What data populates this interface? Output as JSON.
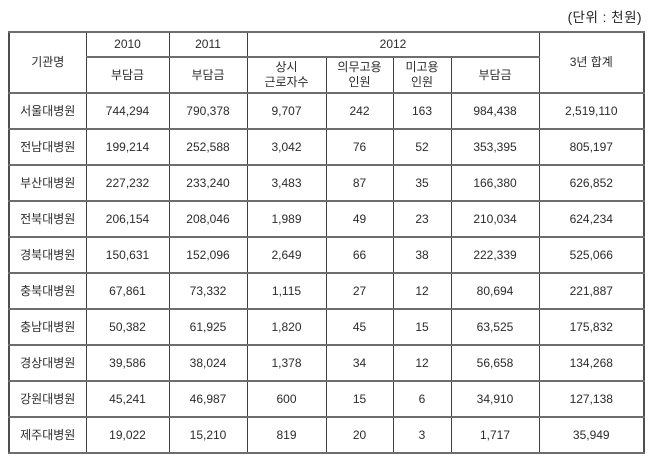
{
  "unit_label": "(단위 : 천원)",
  "table": {
    "header": {
      "org": "기관명",
      "year_2010": "2010",
      "year_2011": "2011",
      "year_2012": "2012",
      "total": "3년 합계",
      "levy_2010": "부담금",
      "levy_2011": "부담금",
      "workers_line1": "상시",
      "workers_line2": "근로자수",
      "mandatory_line1": "의무고용",
      "mandatory_line2": "인원",
      "unemployed_line1": "미고용",
      "unemployed_line2": "인원",
      "levy_2012": "부담금"
    },
    "rows": [
      [
        "서울대병원",
        "744,294",
        "790,378",
        "9,707",
        "242",
        "163",
        "984,438",
        "2,519,110"
      ],
      [
        "전남대병원",
        "199,214",
        "252,588",
        "3,042",
        "76",
        "52",
        "353,395",
        "805,197"
      ],
      [
        "부산대병원",
        "227,232",
        "233,240",
        "3,483",
        "87",
        "35",
        "166,380",
        "626,852"
      ],
      [
        "전북대병원",
        "206,154",
        "208,046",
        "1,989",
        "49",
        "23",
        "210,034",
        "624,234"
      ],
      [
        "경북대병원",
        "150,631",
        "152,096",
        "2,649",
        "66",
        "38",
        "222,339",
        "525,066"
      ],
      [
        "충북대병원",
        "67,861",
        "73,332",
        "1,115",
        "27",
        "12",
        "80,694",
        "221,887"
      ],
      [
        "충남대병원",
        "50,382",
        "61,925",
        "1,820",
        "45",
        "15",
        "63,525",
        "175,832"
      ],
      [
        "경상대병원",
        "39,586",
        "38,024",
        "1,378",
        "34",
        "12",
        "56,658",
        "134,268"
      ],
      [
        "강원대병원",
        "45,241",
        "46,987",
        "600",
        "15",
        "6",
        "34,910",
        "127,138"
      ],
      [
        "제주대병원",
        "19,022",
        "15,210",
        "819",
        "20",
        "3",
        "1,717",
        "35,949"
      ]
    ]
  }
}
